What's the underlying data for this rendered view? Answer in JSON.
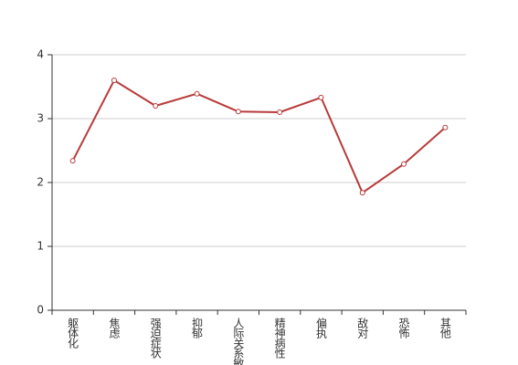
{
  "chart_data": {
    "type": "line",
    "categories": [
      "躯体化",
      "焦虑",
      "强迫症状",
      "抑郁",
      "人际关系敏感",
      "精神病性",
      "偏执",
      "敌对",
      "恐怖",
      "其他"
    ],
    "values": [
      2.34,
      3.6,
      3.2,
      3.39,
      3.11,
      3.1,
      3.33,
      1.84,
      2.29,
      2.86
    ],
    "color": "#b83a3a",
    "ylim": [
      0,
      4
    ],
    "yticks": [
      0,
      1,
      2,
      3,
      4
    ],
    "grid": true
  }
}
